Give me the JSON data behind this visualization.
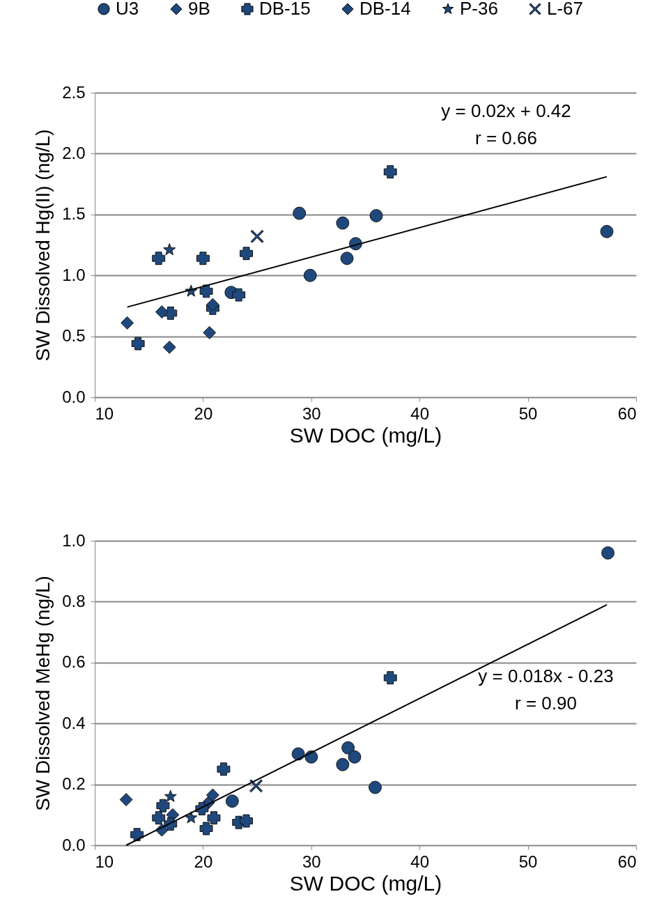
{
  "chart_data": [
    {
      "type": "scatter",
      "xlabel": "SW DOC (mg/L)",
      "ylabel": "SW Dissolved Hg(II) (ng/L)",
      "annotations": [
        "y = 0.02x + 0.42",
        "r = 0.66"
      ],
      "xlim": [
        10,
        60
      ],
      "xticks": [
        10,
        20,
        30,
        40,
        50,
        60
      ],
      "ylim": [
        0,
        2.5
      ],
      "yticks": [
        {
          "value": 0,
          "label": "0.0"
        },
        {
          "value": 0.5,
          "label": "0.5"
        },
        {
          "value": 1,
          "label": "1.0"
        },
        {
          "value": 1.5,
          "label": "1.5"
        },
        {
          "value": 2,
          "label": "2.0"
        },
        {
          "value": 2.5,
          "label": "2.5"
        }
      ],
      "grid": "y",
      "legend": "top",
      "series": [
        {
          "name": "U3",
          "marker": "circle",
          "color": "#1f497d",
          "x": [
            28.9,
            32.9,
            36.0,
            34.1,
            33.3,
            29.9,
            57.3,
            22.6
          ],
          "values": [
            1.51,
            1.43,
            1.49,
            1.26,
            1.14,
            1.0,
            1.36,
            0.86
          ]
        },
        {
          "name": "9B",
          "marker": "diamond",
          "color": "#1f497d",
          "x": [
            16.9,
            20.6
          ],
          "values": [
            0.41,
            0.53
          ]
        },
        {
          "name": "DB-15",
          "marker": "cross",
          "color": "#1f497d",
          "x": [
            37.3,
            15.9,
            20.0,
            24.0,
            20.3,
            23.3,
            17.0,
            20.9,
            14.0
          ],
          "values": [
            1.85,
            1.14,
            1.14,
            1.18,
            0.87,
            0.84,
            0.69,
            0.73,
            0.44
          ]
        },
        {
          "name": "DB-14",
          "marker": "diamond",
          "color": "#1f497d",
          "x": [
            13.0,
            16.2,
            20.9
          ],
          "values": [
            0.61,
            0.7,
            0.76
          ]
        },
        {
          "name": "P-36",
          "marker": "star",
          "color": "#1f497d",
          "x": [
            16.9,
            18.9
          ],
          "values": [
            1.21,
            0.87
          ]
        },
        {
          "name": "L-67",
          "color": "#1f497d",
          "x": [
            25.0
          ],
          "values": [
            1.32
          ]
        },
        {
          "type": "line",
          "color": "#000000",
          "x": [
            13.0,
            57.3
          ],
          "values": [
            0.74,
            1.81
          ]
        }
      ]
    },
    {
      "type": "scatter",
      "xlabel": "SW DOC (mg/L)",
      "ylabel": "SW Dissolved MeHg (ng/L)",
      "annotations": [
        "y = 0.018x - 0.23",
        "r = 0.90"
      ],
      "xlim": [
        10,
        60
      ],
      "xticks": [
        10,
        20,
        30,
        40,
        50,
        60
      ],
      "ylim": [
        0,
        1
      ],
      "yticks": [
        {
          "value": 0,
          "label": "0.0"
        },
        {
          "value": 0.2,
          "label": "0.2"
        },
        {
          "value": 0.4,
          "label": "0.4"
        },
        {
          "value": 0.6,
          "label": "0.6"
        },
        {
          "value": 0.8,
          "label": "0.8"
        },
        {
          "value": 1,
          "label": "1.0"
        }
      ],
      "grid": "y",
      "legend": "top",
      "series": [
        {
          "name": "U3",
          "marker": "circle",
          "color": "#1f497d",
          "x": [
            28.8,
            32.9,
            30.0,
            33.4,
            34.0,
            35.9,
            22.7,
            57.4
          ],
          "values": [
            0.3,
            0.265,
            0.29,
            0.32,
            0.29,
            0.19,
            0.145,
            0.96
          ]
        },
        {
          "name": "9B",
          "marker": "diamond",
          "color": "#1f497d",
          "x": [
            17.2,
            20.5
          ],
          "values": [
            0.1,
            0.14
          ]
        },
        {
          "name": "DB-15",
          "marker": "cross",
          "color": "#1f497d",
          "x": [
            37.3,
            21.9,
            16.3,
            15.9,
            17.0,
            13.9,
            19.9,
            21.0,
            20.3,
            23.3,
            24.0
          ],
          "values": [
            0.55,
            0.25,
            0.13,
            0.09,
            0.07,
            0.035,
            0.12,
            0.09,
            0.055,
            0.075,
            0.08
          ]
        },
        {
          "name": "DB-14",
          "marker": "diamond",
          "color": "#1f497d",
          "x": [
            12.9,
            20.9,
            16.2
          ],
          "values": [
            0.15,
            0.165,
            0.05
          ]
        },
        {
          "name": "P-36",
          "marker": "star",
          "color": "#1f497d",
          "x": [
            17.0,
            18.9
          ],
          "values": [
            0.16,
            0.09
          ]
        },
        {
          "name": "L-67",
          "color": "#1f497d",
          "x": [
            24.9
          ],
          "values": [
            0.195
          ]
        },
        {
          "type": "line",
          "color": "#000000",
          "x": [
            12.9,
            57.3
          ],
          "values": [
            0.0,
            0.79
          ]
        }
      ]
    }
  ]
}
